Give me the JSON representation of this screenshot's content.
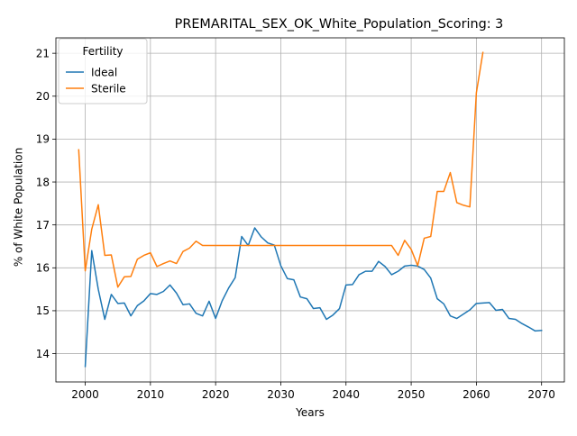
{
  "chart_data": {
    "type": "line",
    "title": "PREMARITAL_SEX_OK_White_Population_Scoring: 3",
    "xlabel": "Years",
    "ylabel": "% of White Population",
    "xlim": [
      1995.5,
      2073.5
    ],
    "ylim": [
      13.34,
      21.36
    ],
    "xticks": [
      2000,
      2010,
      2020,
      2030,
      2040,
      2050,
      2060,
      2070
    ],
    "yticks": [
      14,
      15,
      16,
      17,
      18,
      19,
      20,
      21
    ],
    "grid": true,
    "legend": {
      "title": "Fertility",
      "placement": "top-left"
    },
    "colors": {
      "Ideal": "#1f77b4",
      "Sterile": "#ff7f0e"
    },
    "series": [
      {
        "name": "Ideal",
        "x": [
          2000,
          2001,
          2002,
          2003,
          2004,
          2005,
          2006,
          2007,
          2008,
          2009,
          2010,
          2011,
          2012,
          2013,
          2014,
          2015,
          2016,
          2017,
          2018,
          2019,
          2020,
          2021,
          2022,
          2023,
          2024,
          2025,
          2026,
          2027,
          2028,
          2029,
          2030,
          2031,
          2032,
          2033,
          2034,
          2035,
          2036,
          2037,
          2038,
          2039,
          2040,
          2041,
          2042,
          2043,
          2044,
          2045,
          2046,
          2047,
          2048,
          2049,
          2050,
          2051,
          2052,
          2053,
          2054,
          2055,
          2056,
          2057,
          2058,
          2059,
          2060,
          2061,
          2062,
          2063,
          2064,
          2065,
          2066,
          2067,
          2068,
          2069,
          2070
        ],
        "y": [
          13.7,
          16.4,
          15.5,
          14.8,
          15.38,
          15.17,
          15.18,
          14.88,
          15.12,
          15.23,
          15.4,
          15.38,
          15.45,
          15.6,
          15.41,
          15.14,
          15.16,
          14.94,
          14.88,
          15.22,
          14.82,
          15.23,
          15.53,
          15.77,
          16.73,
          16.52,
          16.93,
          16.72,
          16.58,
          16.53,
          16.05,
          15.75,
          15.72,
          15.32,
          15.28,
          15.05,
          15.07,
          14.8,
          14.9,
          15.05,
          15.6,
          15.61,
          15.84,
          15.92,
          15.92,
          16.15,
          16.03,
          15.84,
          15.92,
          16.04,
          16.06,
          16.04,
          15.96,
          15.76,
          15.28,
          15.16,
          14.88,
          14.82,
          14.92,
          15.02,
          15.17,
          15.18,
          15.19,
          15.01,
          15.03,
          14.82,
          14.8,
          14.7,
          14.62,
          14.53,
          14.54
        ]
      },
      {
        "name": "Sterile",
        "x": [
          1999,
          2000,
          2001,
          2002,
          2003,
          2004,
          2005,
          2006,
          2007,
          2008,
          2009,
          2010,
          2011,
          2012,
          2013,
          2014,
          2015,
          2016,
          2017,
          2018,
          2019,
          2020,
          2021,
          2022,
          2023,
          2024,
          2025,
          2026,
          2027,
          2028,
          2029,
          2030,
          2031,
          2032,
          2033,
          2034,
          2035,
          2036,
          2037,
          2038,
          2039,
          2040,
          2041,
          2042,
          2043,
          2044,
          2045,
          2046,
          2047,
          2048,
          2049,
          2050,
          2051,
          2052,
          2053,
          2054,
          2055,
          2056,
          2057,
          2058,
          2059,
          2060,
          2061
        ],
        "y": [
          18.75,
          15.93,
          16.9,
          17.47,
          16.29,
          16.3,
          15.55,
          15.79,
          15.8,
          16.2,
          16.29,
          16.35,
          16.03,
          16.1,
          16.16,
          16.1,
          16.38,
          16.46,
          16.62,
          16.52,
          16.52,
          16.52,
          16.52,
          16.52,
          16.52,
          16.52,
          16.52,
          16.52,
          16.52,
          16.52,
          16.52,
          16.52,
          16.52,
          16.52,
          16.52,
          16.52,
          16.52,
          16.52,
          16.52,
          16.52,
          16.52,
          16.52,
          16.52,
          16.52,
          16.52,
          16.52,
          16.52,
          16.52,
          16.52,
          16.29,
          16.64,
          16.43,
          16.05,
          16.69,
          16.73,
          17.78,
          17.78,
          18.22,
          17.52,
          17.46,
          17.42,
          20.08,
          21.02
        ]
      }
    ]
  }
}
